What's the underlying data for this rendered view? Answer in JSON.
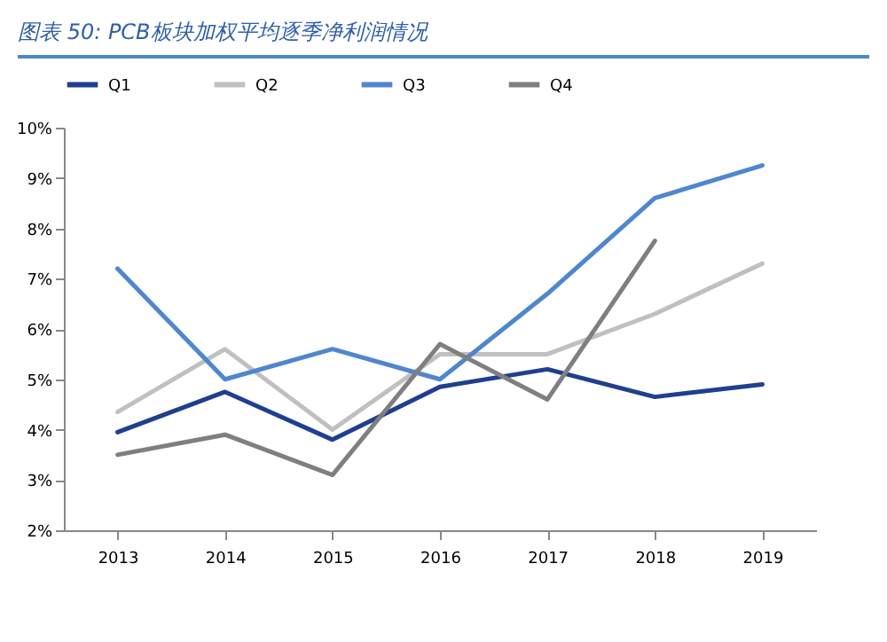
{
  "chart_data": {
    "type": "line",
    "title": "图表 50: PCB板块加权平均逐季净利润情况",
    "categories": [
      "2013",
      "2014",
      "2015",
      "2016",
      "2017",
      "2018",
      "2019"
    ],
    "series": [
      {
        "name": "Q1",
        "color": "#1f3f8f",
        "values": [
          3.95,
          4.75,
          3.8,
          4.85,
          5.2,
          4.65,
          4.9
        ]
      },
      {
        "name": "Q2",
        "color": "#c0c0c0",
        "values": [
          4.35,
          5.6,
          4.0,
          5.5,
          5.5,
          6.3,
          7.3
        ]
      },
      {
        "name": "Q3",
        "color": "#4f86d0",
        "values": [
          7.2,
          5.0,
          5.6,
          5.0,
          6.7,
          8.6,
          9.25
        ]
      },
      {
        "name": "Q4",
        "color": "#7f7f7f",
        "values": [
          3.5,
          3.9,
          3.1,
          5.7,
          4.6,
          7.75,
          null
        ]
      }
    ],
    "ylim": [
      2,
      10
    ],
    "yticks": [
      {
        "value": 2,
        "label": "2%"
      },
      {
        "value": 3,
        "label": "3%"
      },
      {
        "value": 4,
        "label": "4%"
      },
      {
        "value": 5,
        "label": "5%"
      },
      {
        "value": 6,
        "label": "6%"
      },
      {
        "value": 7,
        "label": "7%"
      },
      {
        "value": 8,
        "label": "8%"
      },
      {
        "value": 9,
        "label": "9%"
      },
      {
        "value": 10,
        "label": "10%"
      }
    ],
    "legend": "top",
    "grid": false,
    "marker": "none",
    "line_style": "solid"
  }
}
